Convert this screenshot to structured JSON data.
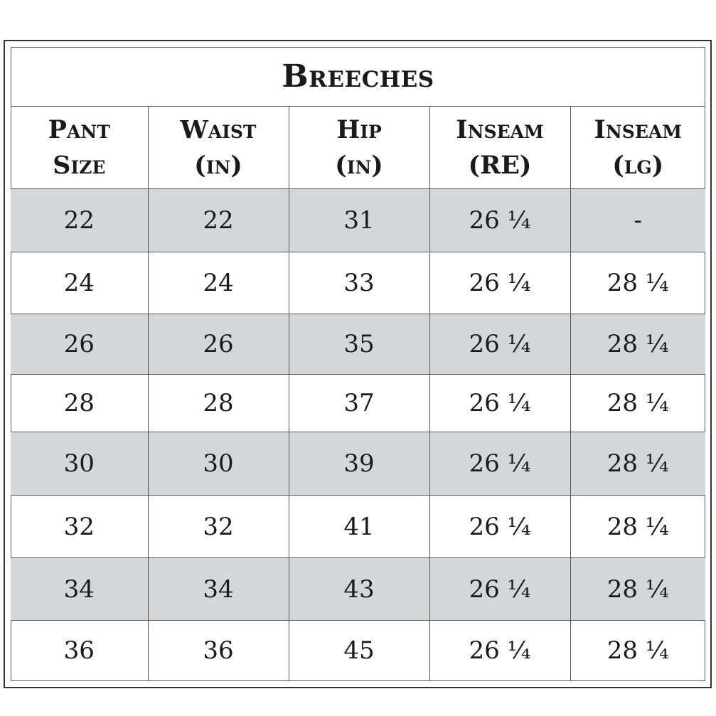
{
  "title": "Breeches",
  "headers": [
    {
      "line1": "Pant",
      "line2": "Size"
    },
    {
      "line1": "Waist",
      "line2": "(in)"
    },
    {
      "line1": "Hip",
      "line2": "(in)"
    },
    {
      "line1": "Inseam",
      "line2": "(RE)"
    },
    {
      "line1": "Inseam",
      "line2": "(lg)"
    }
  ],
  "rows": [
    [
      "22",
      "22",
      "31",
      "26 ¼",
      "-"
    ],
    [
      "24",
      "24",
      "33",
      "26 ¼",
      "28 ¼"
    ],
    [
      "26",
      "26",
      "35",
      "26 ¼",
      "28 ¼"
    ],
    [
      "28",
      "28",
      "37",
      "26 ¼",
      "28 ¼"
    ],
    [
      "30",
      "30",
      "39",
      "26 ¼",
      "28 ¼"
    ],
    [
      "32",
      "32",
      "41",
      "26 ¼",
      "28 ¼"
    ],
    [
      "34",
      "34",
      "43",
      "26 ¼",
      "28 ¼"
    ],
    [
      "36",
      "36",
      "45",
      "26 ¼",
      "28 ¼"
    ]
  ],
  "colors": {
    "shaded_row": "#d4d7da",
    "border": "#555555"
  }
}
